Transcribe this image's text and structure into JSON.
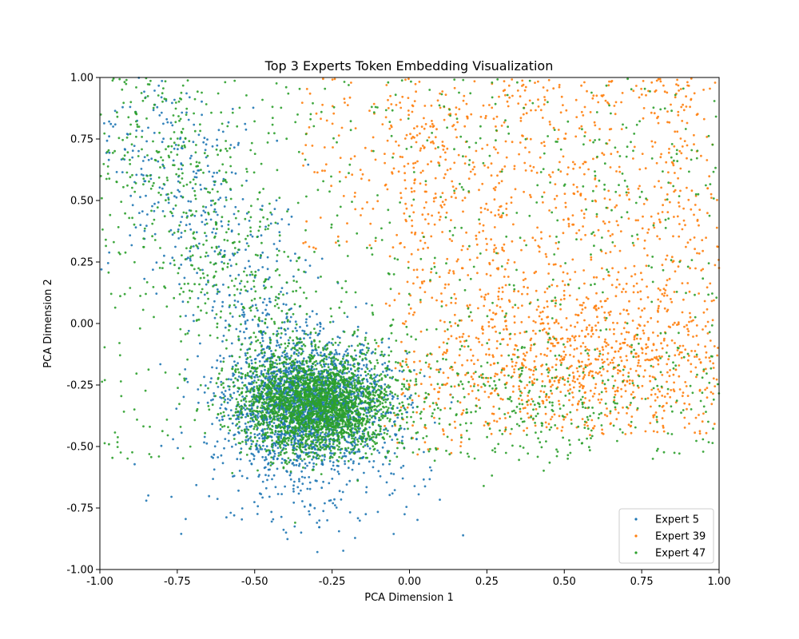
{
  "chart_data": {
    "type": "scatter",
    "title": "Top 3 Experts Token Embedding Visualization",
    "xlabel": "PCA Dimension 1",
    "ylabel": "PCA Dimension 2",
    "xlim": [
      -1.0,
      1.0
    ],
    "ylim": [
      -1.0,
      1.0
    ],
    "x_ticks": [
      "-1.00",
      "-0.75",
      "-0.50",
      "-0.25",
      "0.00",
      "0.25",
      "0.50",
      "0.75",
      "1.00"
    ],
    "y_ticks": [
      "-1.00",
      "-0.75",
      "-0.50",
      "-0.25",
      "0.00",
      "0.25",
      "0.50",
      "0.75",
      "1.00"
    ],
    "grid": false,
    "legend_position": "lower-right",
    "series": [
      {
        "name": "Expert 5",
        "color": "#1f77b4",
        "distribution": {
          "center": [
            -0.33,
            -0.33
          ],
          "spread": [
            0.13,
            0.12
          ],
          "count": 3000,
          "tail": "upper-left and lower"
        },
        "points": [
          [
            -0.35,
            -0.3
          ],
          [
            -0.3,
            -0.42
          ],
          [
            -0.4,
            -0.2
          ],
          [
            -0.25,
            -0.35
          ],
          [
            -0.45,
            -0.4
          ],
          [
            -0.2,
            -0.25
          ],
          [
            -0.5,
            -0.45
          ],
          [
            -0.6,
            -0.05
          ],
          [
            -0.55,
            0.3
          ],
          [
            -0.7,
            0.55
          ],
          [
            -0.1,
            -0.6
          ],
          [
            -0.85,
            -0.72
          ],
          [
            -0.35,
            -0.85
          ]
        ]
      },
      {
        "name": "Expert 39",
        "color": "#ff7f0e",
        "distribution": {
          "center": [
            0.55,
            0.05
          ],
          "spread": [
            0.28,
            0.32
          ],
          "count": 2000,
          "tail": "right half, upper region"
        },
        "points": [
          [
            0.5,
            0.1
          ],
          [
            0.75,
            -0.1
          ],
          [
            0.3,
            0.3
          ],
          [
            0.9,
            -0.15
          ],
          [
            0.6,
            0.5
          ],
          [
            0.2,
            -0.15
          ],
          [
            0.85,
            0.25
          ],
          [
            0.45,
            -0.3
          ],
          [
            0.15,
            0.85
          ],
          [
            0.95,
            0.95
          ]
        ]
      },
      {
        "name": "Expert 47",
        "color": "#2ca02c",
        "distribution": {
          "center": [
            -0.3,
            -0.33
          ],
          "spread": [
            0.12,
            0.1
          ],
          "count": 4500,
          "tail": "broad spread over whole plot"
        },
        "points": [
          [
            -0.3,
            -0.33
          ],
          [
            -0.4,
            -0.1
          ],
          [
            -0.2,
            -0.4
          ],
          [
            -0.65,
            0.45
          ],
          [
            -0.05,
            0.2
          ],
          [
            0.4,
            -0.35
          ],
          [
            0.8,
            -0.4
          ],
          [
            -0.9,
            0.9
          ],
          [
            0.6,
            0.6
          ],
          [
            -0.5,
            0.1
          ]
        ]
      }
    ]
  }
}
